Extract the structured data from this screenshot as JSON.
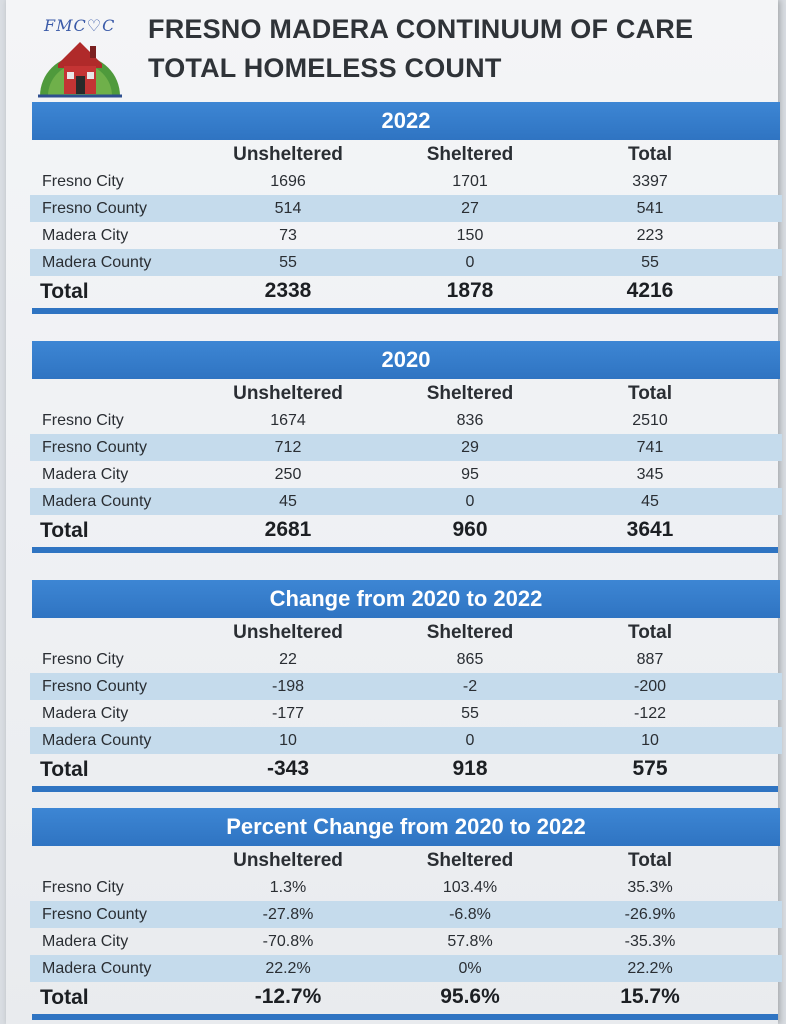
{
  "header": {
    "logo_text": "FMC♡C",
    "title_line1": "FRESNO MADERA CONTINUUM OF CARE",
    "title_line2": "TOTAL HOMELESS COUNT",
    "icon": "house-logo-icon",
    "accent_color": "#2f74c2",
    "stripe_color": "#c5dbec"
  },
  "sections": [
    {
      "title": "2022",
      "columns": [
        "Unsheltered",
        "Sheltered",
        "Total"
      ],
      "rows": [
        {
          "label": "Fresno City",
          "values": [
            "1696",
            "1701",
            "3397"
          ]
        },
        {
          "label": "Fresno County",
          "values": [
            "514",
            "27",
            "541"
          ]
        },
        {
          "label": "Madera City",
          "values": [
            "73",
            "150",
            "223"
          ]
        },
        {
          "label": "Madera County",
          "values": [
            "55",
            "0",
            "55"
          ]
        }
      ],
      "total": {
        "label": "Total",
        "values": [
          "2338",
          "1878",
          "4216"
        ]
      }
    },
    {
      "title": "2020",
      "columns": [
        "Unsheltered",
        "Sheltered",
        "Total"
      ],
      "rows": [
        {
          "label": "Fresno City",
          "values": [
            "1674",
            "836",
            "2510"
          ]
        },
        {
          "label": "Fresno County",
          "values": [
            "712",
            "29",
            "741"
          ]
        },
        {
          "label": "Madera City",
          "values": [
            "250",
            "95",
            "345"
          ]
        },
        {
          "label": "Madera County",
          "values": [
            "45",
            "0",
            "45"
          ]
        }
      ],
      "total": {
        "label": "Total",
        "values": [
          "2681",
          "960",
          "3641"
        ]
      }
    },
    {
      "title": "Change from 2020 to 2022",
      "columns": [
        "Unsheltered",
        "Sheltered",
        "Total"
      ],
      "rows": [
        {
          "label": "Fresno City",
          "values": [
            "22",
            "865",
            "887"
          ]
        },
        {
          "label": "Fresno County",
          "values": [
            "-198",
            "-2",
            "-200"
          ]
        },
        {
          "label": "Madera City",
          "values": [
            "-177",
            "55",
            "-122"
          ]
        },
        {
          "label": "Madera County",
          "values": [
            "10",
            "0",
            "10"
          ]
        }
      ],
      "total": {
        "label": "Total",
        "values": [
          "-343",
          "918",
          "575"
        ]
      }
    },
    {
      "title": "Percent Change from 2020 to 2022",
      "columns": [
        "Unsheltered",
        "Sheltered",
        "Total"
      ],
      "rows": [
        {
          "label": "Fresno City",
          "values": [
            "1.3%",
            "103.4%",
            "35.3%"
          ]
        },
        {
          "label": "Fresno County",
          "values": [
            "-27.8%",
            "-6.8%",
            "-26.9%"
          ]
        },
        {
          "label": "Madera City",
          "values": [
            "-70.8%",
            "57.8%",
            "-35.3%"
          ]
        },
        {
          "label": "Madera County",
          "values": [
            "22.2%",
            "0%",
            "22.2%"
          ]
        }
      ],
      "total": {
        "label": "Total",
        "values": [
          "-12.7%",
          "95.6%",
          "15.7%"
        ]
      }
    }
  ]
}
